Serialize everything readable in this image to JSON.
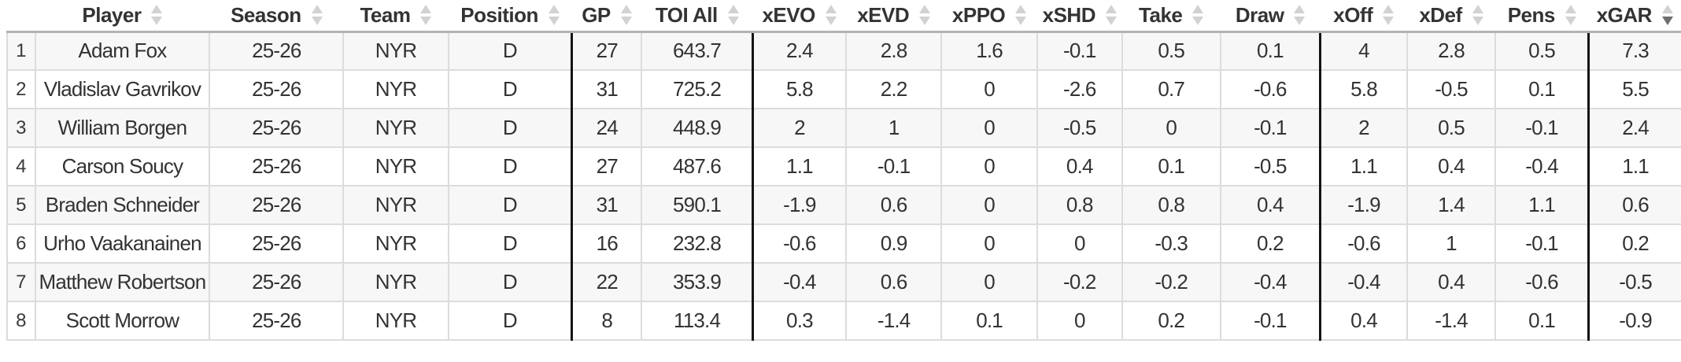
{
  "table": {
    "columns": [
      {
        "key": "player",
        "label": "Player",
        "sort": "none",
        "group_start": false
      },
      {
        "key": "season",
        "label": "Season",
        "sort": "none",
        "group_start": false
      },
      {
        "key": "team",
        "label": "Team",
        "sort": "none",
        "group_start": false
      },
      {
        "key": "position",
        "label": "Position",
        "sort": "none",
        "group_start": false
      },
      {
        "key": "gp",
        "label": "GP",
        "sort": "none",
        "group_start": true
      },
      {
        "key": "toi-all",
        "label": "TOI All",
        "sort": "none",
        "group_start": false
      },
      {
        "key": "xevo",
        "label": "xEVO",
        "sort": "none",
        "group_start": true
      },
      {
        "key": "xevd",
        "label": "xEVD",
        "sort": "none",
        "group_start": false
      },
      {
        "key": "xppo",
        "label": "xPPO",
        "sort": "none",
        "group_start": false
      },
      {
        "key": "xshd",
        "label": "xSHD",
        "sort": "none",
        "group_start": false
      },
      {
        "key": "take",
        "label": "Take",
        "sort": "none",
        "group_start": false
      },
      {
        "key": "draw",
        "label": "Draw",
        "sort": "none",
        "group_start": false
      },
      {
        "key": "xoff",
        "label": "xOff",
        "sort": "none",
        "group_start": true
      },
      {
        "key": "xdef",
        "label": "xDef",
        "sort": "none",
        "group_start": false
      },
      {
        "key": "pens",
        "label": "Pens",
        "sort": "none",
        "group_start": false
      },
      {
        "key": "xgar",
        "label": "xGAR",
        "sort": "desc",
        "group_start": true
      }
    ],
    "rows": [
      {
        "num": "1",
        "cells": [
          "Adam Fox",
          "25-26",
          "NYR",
          "D",
          "27",
          "643.7",
          "2.4",
          "2.8",
          "1.6",
          "-0.1",
          "0.5",
          "0.1",
          "4",
          "2.8",
          "0.5",
          "7.3"
        ]
      },
      {
        "num": "2",
        "cells": [
          "Vladislav Gavrikov",
          "25-26",
          "NYR",
          "D",
          "31",
          "725.2",
          "5.8",
          "2.2",
          "0",
          "-2.6",
          "0.7",
          "-0.6",
          "5.8",
          "-0.5",
          "0.1",
          "5.5"
        ]
      },
      {
        "num": "3",
        "cells": [
          "William Borgen",
          "25-26",
          "NYR",
          "D",
          "24",
          "448.9",
          "2",
          "1",
          "0",
          "-0.5",
          "0",
          "-0.1",
          "2",
          "0.5",
          "-0.1",
          "2.4"
        ]
      },
      {
        "num": "4",
        "cells": [
          "Carson Soucy",
          "25-26",
          "NYR",
          "D",
          "27",
          "487.6",
          "1.1",
          "-0.1",
          "0",
          "0.4",
          "0.1",
          "-0.5",
          "1.1",
          "0.4",
          "-0.4",
          "1.1"
        ]
      },
      {
        "num": "5",
        "cells": [
          "Braden Schneider",
          "25-26",
          "NYR",
          "D",
          "31",
          "590.1",
          "-1.9",
          "0.6",
          "0",
          "0.8",
          "0.8",
          "0.4",
          "-1.9",
          "1.4",
          "1.1",
          "0.6"
        ]
      },
      {
        "num": "6",
        "cells": [
          "Urho Vaakanainen",
          "25-26",
          "NYR",
          "D",
          "16",
          "232.8",
          "-0.6",
          "0.9",
          "0",
          "0",
          "-0.3",
          "0.2",
          "-0.6",
          "1",
          "-0.1",
          "0.2"
        ]
      },
      {
        "num": "7",
        "cells": [
          "Matthew Robertson",
          "25-26",
          "NYR",
          "D",
          "22",
          "353.9",
          "-0.4",
          "0.6",
          "0",
          "-0.2",
          "-0.2",
          "-0.4",
          "-0.4",
          "0.4",
          "-0.6",
          "-0.5"
        ]
      },
      {
        "num": "8",
        "cells": [
          "Scott Morrow",
          "25-26",
          "NYR",
          "D",
          "8",
          "113.4",
          "0.3",
          "-1.4",
          "0.1",
          "0",
          "0.2",
          "-0.1",
          "0.4",
          "-1.4",
          "0.1",
          "-0.9"
        ]
      }
    ]
  },
  "colors": {
    "text": "#333333",
    "row_stripe": "#f7f7f7",
    "grid_line": "#dcdcdc",
    "group_divider": "#141414",
    "header_divider": "#b3b3b3",
    "sort_arrow_inactive": "#d2d2d2",
    "sort_arrow_active": "#6e6e6e"
  }
}
